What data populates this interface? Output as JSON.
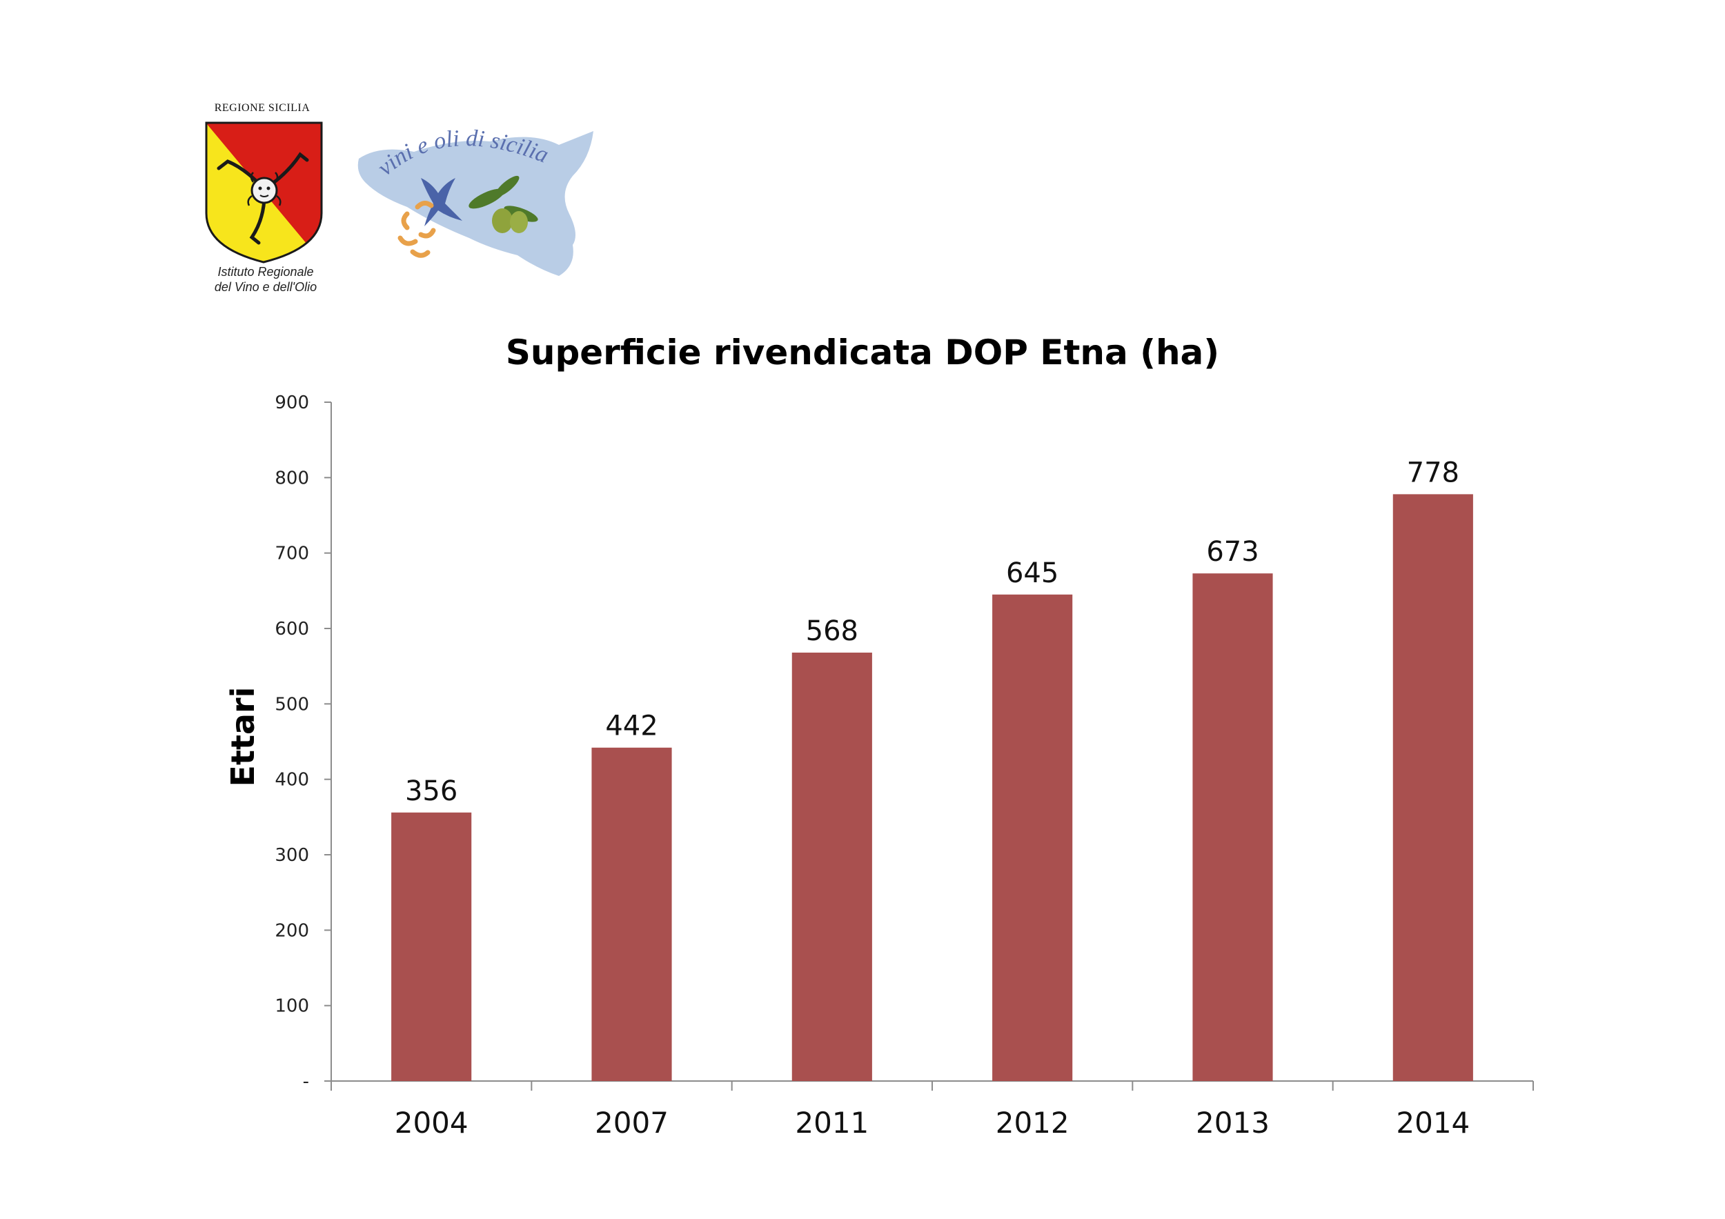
{
  "logos": {
    "region": {
      "title": "REGIONE SICILIA",
      "subtitle_line1": "Istituto  Regionale",
      "subtitle_line2": "del Vino e dell'Olio",
      "colors": {
        "red": "#d81e17",
        "yellow": "#f7e51c",
        "outline": "#1a1a1a"
      }
    },
    "irvo": {
      "text": "vini e oli di sicilia",
      "colors": {
        "map": "#b9cde6",
        "text": "#5a6fae",
        "grape": "#4a63a8",
        "leaf": "#4f7a2a",
        "olive": "#8fa33c",
        "orange": "#e8a14a"
      }
    }
  },
  "chart_data": {
    "type": "bar",
    "title": "Superficie rivendicata DOP Etna (ha)",
    "xlabel": "",
    "ylabel": "Ettari",
    "categories": [
      "2004",
      "2007",
      "2011",
      "2012",
      "2013",
      "2014"
    ],
    "values": [
      356,
      442,
      568,
      645,
      673,
      778
    ],
    "data_labels": [
      "356",
      "442",
      "568",
      "645",
      "673",
      "778"
    ],
    "ylim": [
      0,
      900
    ],
    "yticks": [
      0,
      100,
      200,
      300,
      400,
      500,
      600,
      700,
      800,
      900
    ],
    "ytick_labels": [
      "-",
      "100",
      "200",
      "300",
      "400",
      "500",
      "600",
      "700",
      "800",
      "900"
    ],
    "grid": false,
    "legend": "none",
    "bar_color": "#a9504f",
    "axis_color": "#8c8c8c"
  }
}
